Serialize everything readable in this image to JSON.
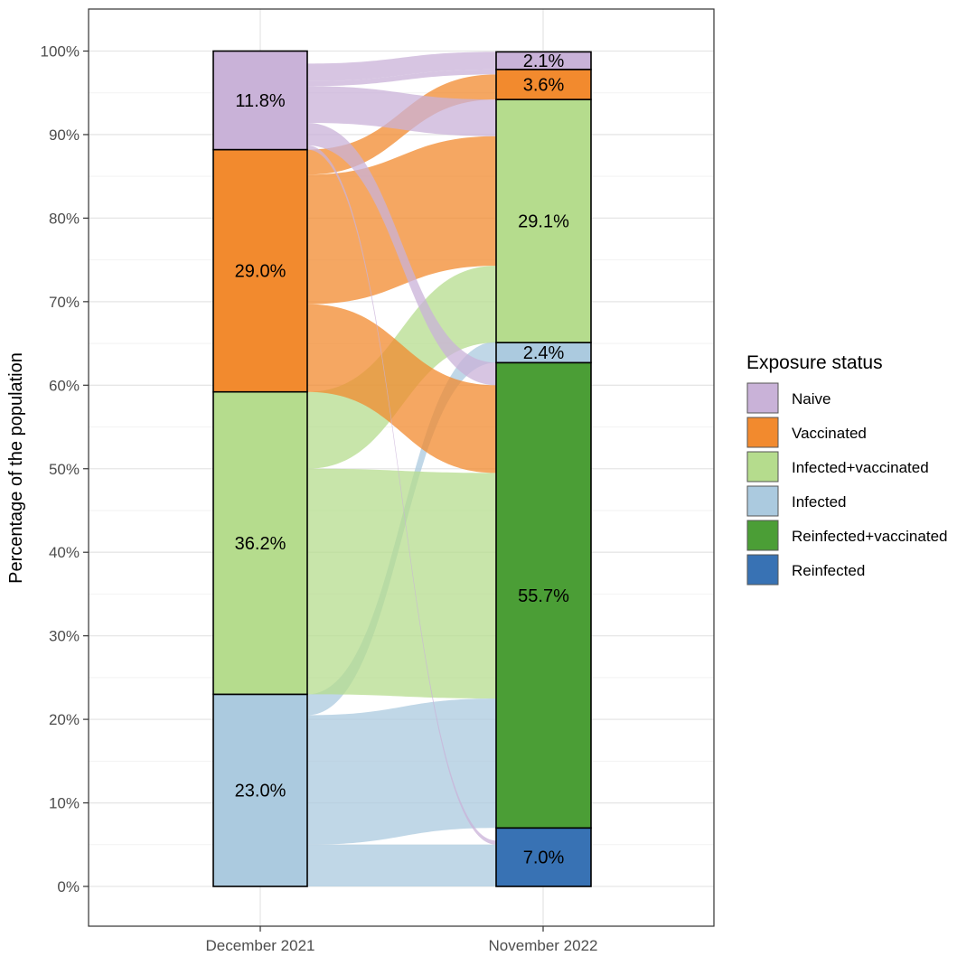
{
  "chart_data": {
    "type": "alluvial",
    "ylabel": "Percentage of the population",
    "xlabel": "",
    "ylim": [
      -5,
      105
    ],
    "yticks": [
      0,
      10,
      20,
      30,
      40,
      50,
      60,
      70,
      80,
      90,
      100
    ],
    "ytick_labels": [
      "0%",
      "10%",
      "20%",
      "30%",
      "40%",
      "50%",
      "60%",
      "70%",
      "80%",
      "90%",
      "100%"
    ],
    "categories": [
      "December 2021",
      "November 2022"
    ],
    "grid": true,
    "legend": {
      "title": "Exposure status",
      "position": "right",
      "entries": [
        "Naive",
        "Vaccinated",
        "Infected+vaccinated",
        "Infected",
        "Reinfected+vaccinated",
        "Reinfected"
      ]
    },
    "colors": {
      "Naive": "#c9b2d8",
      "Vaccinated": "#f28a2e",
      "Infected+vaccinated": "#b5dc8d",
      "Infected": "#abcadf",
      "Reinfected+vaccinated": "#4b9e36",
      "Reinfected": "#3872b4"
    },
    "stacks": [
      {
        "x": "December 2021",
        "segments": [
          {
            "status": "Infected",
            "value": 23.0,
            "label": "23.0%"
          },
          {
            "status": "Infected+vaccinated",
            "value": 36.2,
            "label": "36.2%"
          },
          {
            "status": "Vaccinated",
            "value": 29.0,
            "label": "29.0%"
          },
          {
            "status": "Naive",
            "value": 11.8,
            "label": "11.8%"
          }
        ]
      },
      {
        "x": "November 2022",
        "segments": [
          {
            "status": "Reinfected",
            "value": 7.0,
            "label": "7.0%"
          },
          {
            "status": "Reinfected+vaccinated",
            "value": 55.7,
            "label": "55.7%"
          },
          {
            "status": "Infected",
            "value": 2.4,
            "label": "2.4%"
          },
          {
            "status": "Infected+vaccinated",
            "value": 29.1,
            "label": "29.1%"
          },
          {
            "status": "Vaccinated",
            "value": 3.6,
            "label": "3.6%"
          },
          {
            "status": "Naive",
            "value": 2.1,
            "label": "2.1%"
          }
        ]
      }
    ],
    "flows": [
      {
        "from": "Infected",
        "to": "Reinfected",
        "value": 5.0
      },
      {
        "from": "Infected",
        "to": "Reinfected+vaccinated",
        "value": 15.5
      },
      {
        "from": "Infected",
        "to": "Infected",
        "value": 2.5
      },
      {
        "from": "Infected+vaccinated",
        "to": "Reinfected+vaccinated",
        "value": 27.0
      },
      {
        "from": "Infected+vaccinated",
        "to": "Infected+vaccinated",
        "value": 9.2
      },
      {
        "from": "Vaccinated",
        "to": "Reinfected+vaccinated",
        "value": 10.5
      },
      {
        "from": "Vaccinated",
        "to": "Infected+vaccinated",
        "value": 15.5
      },
      {
        "from": "Vaccinated",
        "to": "Vaccinated",
        "value": 3.0
      },
      {
        "from": "Naive",
        "to": "Reinfected",
        "value": 0.5
      },
      {
        "from": "Naive",
        "to": "Reinfected+vaccinated",
        "value": 2.7
      },
      {
        "from": "Naive",
        "to": "Infected+vaccinated",
        "value": 4.4
      },
      {
        "from": "Naive",
        "to": "Vaccinated",
        "value": 0.6
      },
      {
        "from": "Naive",
        "to": "Naive",
        "value": 2.1
      }
    ]
  }
}
